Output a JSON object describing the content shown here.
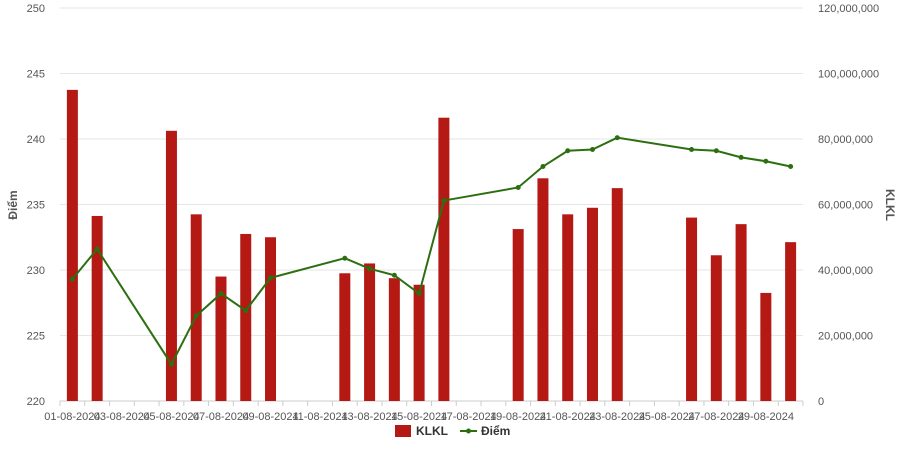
{
  "chart_data": {
    "type": "bar+line",
    "grid": "horizontal",
    "legend_position": "bottom-center",
    "y_left": {
      "label": "Điểm",
      "min": 220,
      "max": 250,
      "ticks": [
        "250",
        "245",
        "240",
        "235",
        "230",
        "225",
        "220"
      ],
      "tick_values": [
        250,
        245,
        240,
        235,
        230,
        225,
        220
      ]
    },
    "y_right": {
      "label": "KLKL",
      "min": 0,
      "max": 120000000,
      "ticks": [
        "120,000,000",
        "100,000,000",
        "80,000,000",
        "60,000,000",
        "40,000,000",
        "20,000,000",
        "0"
      ],
      "tick_values": [
        120000000,
        100000000,
        80000000,
        60000000,
        40000000,
        20000000,
        0
      ]
    },
    "x_ticks": [
      "01-08-2024",
      "03-08-2024",
      "05-08-2024",
      "07-08-2024",
      "09-08-2024",
      "11-08-2024",
      "13-08-2024",
      "15-08-2024",
      "17-08-2024",
      "19-08-2024",
      "21-08-2024",
      "23-08-2024",
      "25-08-2024",
      "27-08-2024",
      "29-08-2024"
    ],
    "dates": [
      "01-08-2024",
      "02-08-2024",
      "03-08-2024",
      "04-08-2024",
      "05-08-2024",
      "06-08-2024",
      "07-08-2024",
      "08-08-2024",
      "09-08-2024",
      "10-08-2024",
      "11-08-2024",
      "12-08-2024",
      "13-08-2024",
      "14-08-2024",
      "15-08-2024",
      "16-08-2024",
      "17-08-2024",
      "18-08-2024",
      "19-08-2024",
      "20-08-2024",
      "21-08-2024",
      "22-08-2024",
      "23-08-2024",
      "24-08-2024",
      "25-08-2024",
      "26-08-2024",
      "27-08-2024",
      "28-08-2024",
      "29-08-2024",
      "30-08-2024"
    ],
    "series": [
      {
        "name": "KLKL",
        "type": "bar",
        "axis": "right",
        "color": "#b41a13",
        "values": [
          95000000,
          56500000,
          null,
          null,
          82500000,
          57000000,
          38000000,
          51000000,
          50000000,
          null,
          null,
          39000000,
          42000000,
          37500000,
          35500000,
          86500000,
          null,
          null,
          52500000,
          68000000,
          57000000,
          59000000,
          65000000,
          null,
          null,
          56000000,
          44500000,
          54000000,
          33000000,
          48500000
        ]
      },
      {
        "name": "Điểm",
        "type": "line",
        "axis": "left",
        "color": "#2c6f11",
        "values": [
          229.3,
          231.6,
          null,
          null,
          222.8,
          226.5,
          228.2,
          226.9,
          229.4,
          null,
          null,
          230.9,
          230.1,
          229.6,
          228.2,
          235.3,
          null,
          null,
          236.3,
          237.9,
          239.1,
          239.2,
          240.1,
          null,
          null,
          239.2,
          239.1,
          238.6,
          238.3,
          237.9
        ]
      }
    ]
  }
}
